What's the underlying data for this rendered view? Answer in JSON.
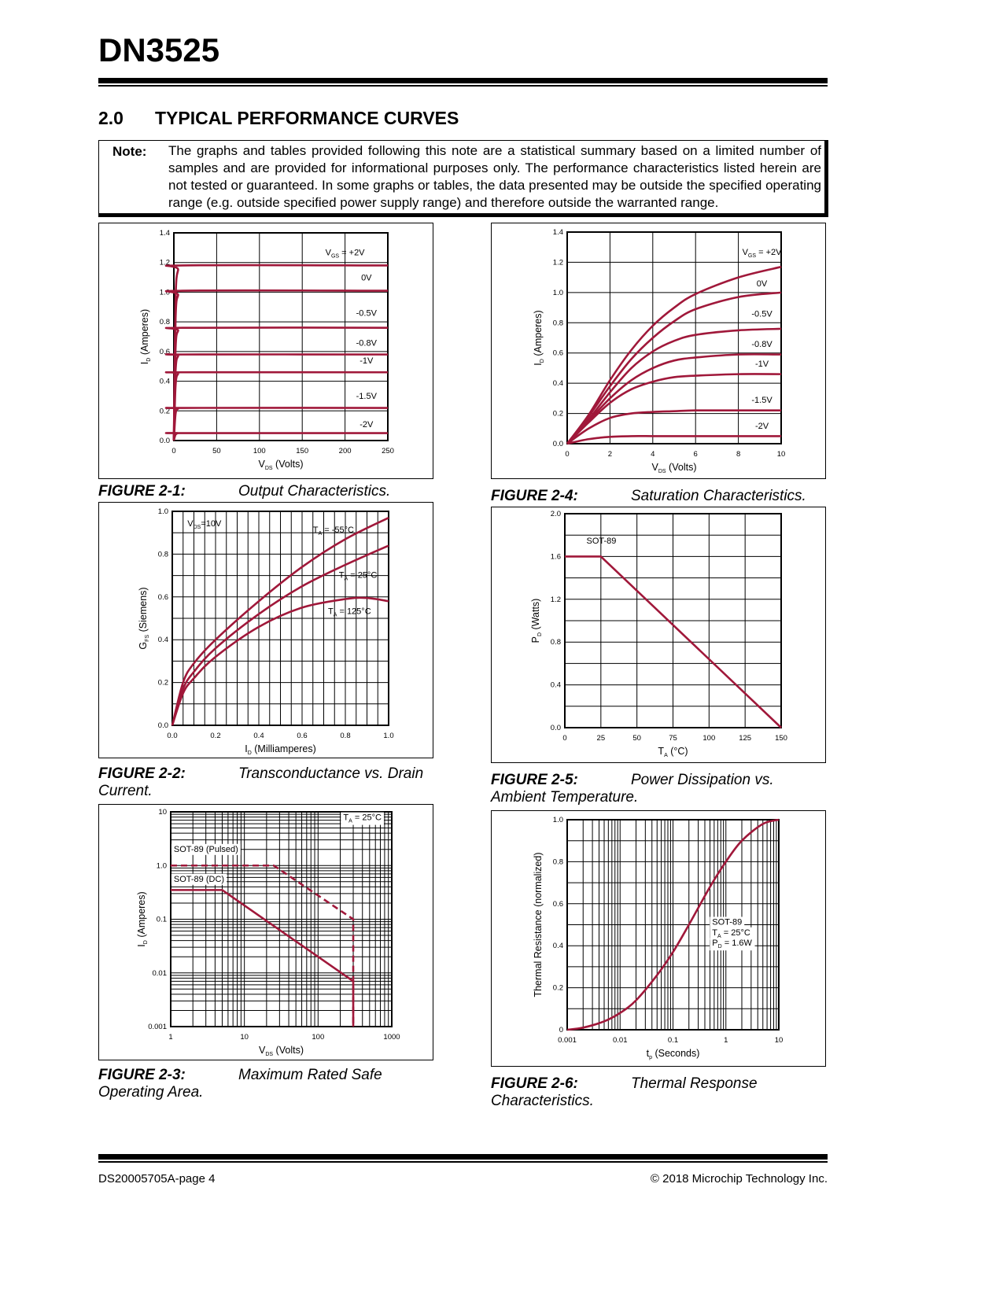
{
  "header": {
    "title": "DN3525"
  },
  "section": {
    "number": "2.0",
    "title": "TYPICAL PERFORMANCE CURVES"
  },
  "note": {
    "label": "Note:",
    "text": "The graphs and tables provided following this note are a statistical summary based on a limited number of samples and are provided for informational purposes only. The performance characteristics listed herein are not tested or guaranteed. In some graphs or tables, the data presented may be outside the specified operating range (e.g. outside specified power supply range) and therefore outside the warranted range."
  },
  "captions": [
    {
      "num": "FIGURE 2-1:",
      "title": "Output Characteristics.",
      "cont": ""
    },
    {
      "num": "FIGURE 2-4:",
      "title": "Saturation Characteristics.",
      "cont": ""
    },
    {
      "num": "FIGURE 2-2:",
      "title": "Transconductance vs. Drain",
      "cont": "Current."
    },
    {
      "num": "FIGURE 2-5:",
      "title": "Power Dissipation vs.",
      "cont": "Ambient Temperature."
    },
    {
      "num": "FIGURE 2-3:",
      "title": "Maximum Rated Safe",
      "cont": "Operating Area."
    },
    {
      "num": "FIGURE 2-6:",
      "title": "Thermal Response",
      "cont": "Characteristics."
    }
  ],
  "footer": {
    "left": "DS20005705A-page 4",
    "right": "© 2018 Microchip Technology Inc."
  },
  "colors": {
    "curve": "#a0183a",
    "grid": "#000000"
  },
  "chart_data": [
    {
      "type": "line",
      "title": "Output Characteristics",
      "xscale": "linear",
      "yscale": "linear",
      "xlim": [
        0,
        250
      ],
      "ylim": [
        0,
        1.4
      ],
      "xticks": [
        "0",
        "50",
        "100",
        "150",
        "200",
        "250"
      ],
      "yticks": [
        "0.0",
        "0.2",
        "0.4",
        "0.6",
        "0.8",
        "1.0",
        "1.2",
        "1.4"
      ],
      "xlabel": {
        "pre": "V",
        "sub": "DS",
        "post": " (Volts)"
      },
      "ylabel": {
        "pre": "I",
        "sub": "D",
        "post": " (Amperes)"
      },
      "grid": true,
      "series": [
        {
          "label": {
            "pre": "V",
            "sub": "GS",
            "post": " = +2V"
          },
          "x": [
            0,
            2,
            5,
            10,
            250
          ],
          "y": [
            0,
            0.95,
            1.15,
            1.18,
            1.18
          ]
        },
        {
          "label": {
            "pre": "0V"
          },
          "x": [
            0,
            2,
            5,
            10,
            250
          ],
          "y": [
            0,
            0.82,
            0.98,
            1.01,
            1.01
          ]
        },
        {
          "label": {
            "pre": "-0.5V"
          },
          "x": [
            0,
            2,
            5,
            10,
            250
          ],
          "y": [
            0,
            0.62,
            0.74,
            0.76,
            0.76
          ]
        },
        {
          "label": {
            "pre": "-0.8V"
          },
          "x": [
            0,
            2,
            5,
            10,
            250
          ],
          "y": [
            0,
            0.47,
            0.57,
            0.58,
            0.58
          ]
        },
        {
          "label": {
            "pre": "-1V"
          },
          "x": [
            0,
            2,
            5,
            10,
            250
          ],
          "y": [
            0,
            0.37,
            0.45,
            0.46,
            0.46
          ]
        },
        {
          "label": {
            "pre": "-1.5V"
          },
          "x": [
            0,
            2,
            5,
            10,
            250
          ],
          "y": [
            0,
            0.18,
            0.215,
            0.22,
            0.22
          ]
        },
        {
          "label": {
            "pre": "-2V"
          },
          "x": [
            0,
            2,
            5,
            10,
            250
          ],
          "y": [
            0,
            0.04,
            0.05,
            0.05,
            0.05
          ]
        }
      ],
      "annotations": []
    },
    {
      "type": "line",
      "title": "Saturation Characteristics",
      "xscale": "linear",
      "yscale": "linear",
      "xlim": [
        0,
        10
      ],
      "ylim": [
        0,
        1.4
      ],
      "xticks": [
        "0",
        "2",
        "4",
        "6",
        "8",
        "10"
      ],
      "yticks": [
        "0.0",
        "0.2",
        "0.4",
        "0.6",
        "0.8",
        "1.0",
        "1.2",
        "1.4"
      ],
      "xlabel": {
        "pre": "V",
        "sub": "DS",
        "post": " (Volts)"
      },
      "ylabel": {
        "pre": "I",
        "sub": "D",
        "post": " (Amperes)"
      },
      "grid": true,
      "series": [
        {
          "label": {
            "pre": "V",
            "sub": "GS",
            "post": " = +2V"
          },
          "x": [
            0,
            1,
            2,
            3,
            4,
            5,
            6,
            8,
            10
          ],
          "y": [
            0,
            0.19,
            0.42,
            0.62,
            0.78,
            0.9,
            0.99,
            1.1,
            1.17
          ]
        },
        {
          "label": {
            "pre": "0V"
          },
          "x": [
            0,
            1,
            2,
            3,
            4,
            5,
            6,
            8,
            10
          ],
          "y": [
            0,
            0.18,
            0.38,
            0.56,
            0.7,
            0.81,
            0.89,
            0.97,
            1.0
          ]
        },
        {
          "label": {
            "pre": "-0.5V"
          },
          "x": [
            0,
            1,
            2,
            3,
            4,
            5,
            6,
            8,
            10
          ],
          "y": [
            0,
            0.16,
            0.34,
            0.5,
            0.61,
            0.68,
            0.72,
            0.75,
            0.76
          ]
        },
        {
          "label": {
            "pre": "-0.8V"
          },
          "x": [
            0,
            1,
            2,
            3,
            4,
            5,
            6,
            8,
            10
          ],
          "y": [
            0,
            0.15,
            0.3,
            0.42,
            0.5,
            0.55,
            0.57,
            0.59,
            0.59
          ]
        },
        {
          "label": {
            "pre": "-1V"
          },
          "x": [
            0,
            1,
            2,
            3,
            4,
            5,
            6,
            8,
            10
          ],
          "y": [
            0,
            0.14,
            0.27,
            0.36,
            0.41,
            0.44,
            0.45,
            0.46,
            0.46
          ]
        },
        {
          "label": {
            "pre": "-1.5V"
          },
          "x": [
            0,
            1,
            2,
            3,
            4,
            5,
            6,
            8,
            10
          ],
          "y": [
            0,
            0.1,
            0.17,
            0.2,
            0.21,
            0.215,
            0.22,
            0.22,
            0.22
          ]
        },
        {
          "label": {
            "pre": "-2V"
          },
          "x": [
            0,
            1,
            2,
            3,
            4,
            5,
            6,
            8,
            10
          ],
          "y": [
            0,
            0.03,
            0.045,
            0.05,
            0.05,
            0.05,
            0.05,
            0.05,
            0.05
          ]
        }
      ],
      "annotations": []
    },
    {
      "type": "line",
      "title": "Transconductance vs. Drain Current",
      "xscale": "linear",
      "yscale": "linear",
      "xlim": [
        0,
        1.0
      ],
      "ylim": [
        0,
        1.0
      ],
      "xticks": [
        "0.0",
        "0.2",
        "0.4",
        "0.6",
        "0.8",
        "1.0"
      ],
      "yticks": [
        "0.0",
        "0.2",
        "0.4",
        "0.6",
        "0.8",
        "1.0"
      ],
      "xlabel": {
        "pre": "I",
        "sub": "D",
        "post": " (Milliamperes)"
      },
      "ylabel": {
        "pre": "G",
        "sub": "FS",
        "post": " (Siemens)"
      },
      "grid": true,
      "series": [
        {
          "label": {
            "pre": "T",
            "sub": "A",
            "post": " = -55°C"
          },
          "x": [
            0,
            0.05,
            0.1,
            0.2,
            0.4,
            0.6,
            0.8,
            1.0
          ],
          "y": [
            0,
            0.2,
            0.29,
            0.4,
            0.58,
            0.74,
            0.87,
            0.97
          ]
        },
        {
          "label": {
            "pre": "T",
            "sub": "A",
            "post": " = 25°C"
          },
          "x": [
            0,
            0.05,
            0.1,
            0.2,
            0.4,
            0.6,
            0.8,
            1.0
          ],
          "y": [
            0,
            0.17,
            0.25,
            0.36,
            0.52,
            0.65,
            0.75,
            0.84
          ]
        },
        {
          "label": {
            "pre": "T",
            "sub": "A",
            "post": " = 125°C"
          },
          "x": [
            0,
            0.05,
            0.1,
            0.2,
            0.4,
            0.6,
            0.8,
            0.9,
            1.0
          ],
          "y": [
            0,
            0.15,
            0.22,
            0.32,
            0.46,
            0.55,
            0.59,
            0.595,
            0.58
          ]
        }
      ],
      "annotations": [
        {
          "pre": "V",
          "sub": "DS",
          "post": "=10V"
        }
      ]
    },
    {
      "type": "line",
      "title": "Power Dissipation vs. Ambient Temperature",
      "xscale": "linear",
      "yscale": "linear",
      "xlim": [
        0,
        150
      ],
      "ylim": [
        0,
        2.0
      ],
      "xticks": [
        "0",
        "25",
        "50",
        "75",
        "100",
        "125",
        "150"
      ],
      "yticks": [
        "0.0",
        "0.4",
        "0.8",
        "1.2",
        "1.6",
        "2.0"
      ],
      "xlabel": {
        "pre": "T",
        "sub": "A",
        "post": " (°C)"
      },
      "ylabel": {
        "pre": "P",
        "sub": "D",
        "post": " (Watts)"
      },
      "grid": true,
      "series": [
        {
          "label": {
            "pre": "SOT-89"
          },
          "x": [
            0,
            25,
            150
          ],
          "y": [
            1.6,
            1.6,
            0
          ]
        }
      ],
      "annotations": []
    },
    {
      "type": "line",
      "title": "Maximum Rated Safe Operating Area",
      "xscale": "log",
      "yscale": "log",
      "xlim": [
        1,
        1000
      ],
      "ylim": [
        0.001,
        10
      ],
      "xticks": [
        "1",
        "10",
        "100",
        "1000"
      ],
      "yticks": [
        "0.001",
        "0.01",
        "0.1",
        "1.0",
        "10"
      ],
      "xlabel": {
        "pre": "V",
        "sub": "DS",
        "post": " (Volts)"
      },
      "ylabel": {
        "pre": "I",
        "sub": "D",
        "post": " (Amperes)"
      },
      "grid": true,
      "series": [
        {
          "label": {
            "pre": "SOT-89 (Pulsed)"
          },
          "dashed": true,
          "x": [
            1,
            25,
            300,
            300
          ],
          "y": [
            1.0,
            1.0,
            0.1,
            0.001
          ]
        },
        {
          "label": {
            "pre": "SOT-89 (DC)"
          },
          "x": [
            1,
            5,
            300,
            300
          ],
          "y": [
            0.35,
            0.35,
            0.007,
            0.001
          ]
        }
      ],
      "annotations": [
        {
          "pre": "T",
          "sub": "A",
          "post": " = 25°C"
        }
      ]
    },
    {
      "type": "line",
      "title": "Thermal Response Characteristics",
      "xscale": "log",
      "yscale": "linear",
      "xlim": [
        0.001,
        10
      ],
      "ylim": [
        0,
        1.0
      ],
      "xticks": [
        "0.001",
        "0.01",
        "0.1",
        "1",
        "10"
      ],
      "yticks": [
        "0",
        "0.2",
        "0.4",
        "0.6",
        "0.8",
        "1.0"
      ],
      "xlabel": {
        "pre": "t",
        "sub": "p",
        "post": " (Seconds)"
      },
      "ylabel": {
        "pre": "Thermal Resistance (normalized)"
      },
      "grid": true,
      "series": [
        {
          "label": null,
          "x": [
            0.001,
            0.002,
            0.005,
            0.01,
            0.02,
            0.05,
            0.1,
            0.2,
            0.5,
            1,
            2,
            5,
            10
          ],
          "y": [
            0,
            0.01,
            0.04,
            0.08,
            0.14,
            0.26,
            0.37,
            0.5,
            0.68,
            0.8,
            0.9,
            0.98,
            1.0
          ]
        }
      ],
      "annotations": [
        {
          "pre": "SOT-89"
        },
        {
          "pre": "T",
          "sub": "A",
          "post": " = 25°C"
        },
        {
          "pre": "P",
          "sub": "D",
          "post": " = 1.6W"
        }
      ]
    }
  ]
}
